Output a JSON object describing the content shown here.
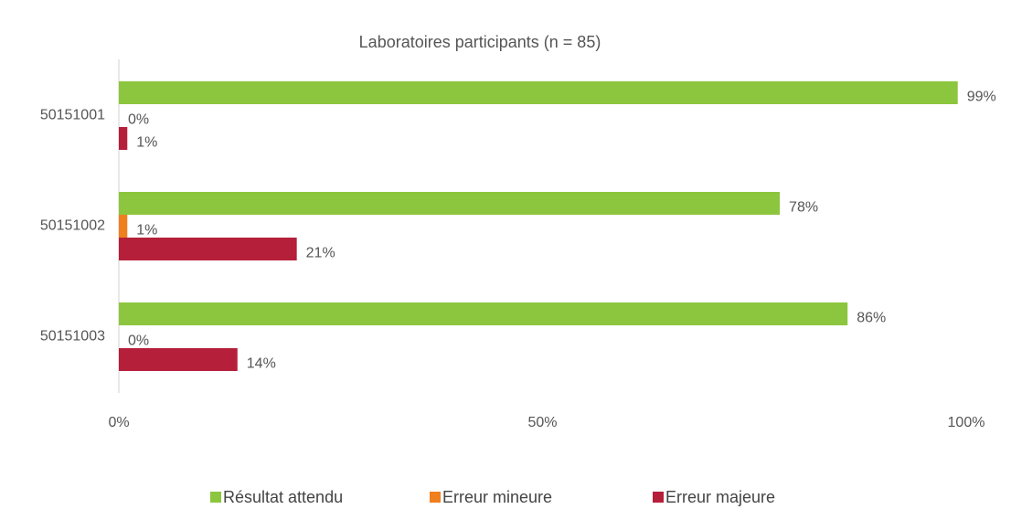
{
  "chart_data": {
    "type": "hbar",
    "title": "Laboratoires participants (n = 85)",
    "categories": [
      "50151001",
      "50151002",
      "50151003"
    ],
    "series": [
      {
        "name": "Résultat attendu",
        "color": "#8cc63e",
        "values": [
          99,
          78,
          86
        ],
        "value_labels": [
          "99%",
          "78%",
          "86%"
        ]
      },
      {
        "name": "Erreur mineure",
        "color": "#f07f1d",
        "values": [
          0,
          1,
          0
        ],
        "value_labels": [
          "0%",
          "1%",
          "0%"
        ]
      },
      {
        "name": "Erreur majeure",
        "color": "#b51f3a",
        "values": [
          1,
          21,
          14
        ],
        "value_labels": [
          "1%",
          "21%",
          "14%"
        ]
      }
    ],
    "xlim": [
      0,
      100
    ],
    "xticks": [
      {
        "value": 0,
        "label": "0%"
      },
      {
        "value": 50,
        "label": "50%"
      },
      {
        "value": 100,
        "label": "100%"
      }
    ],
    "grid": false,
    "legend": "bottom"
  }
}
